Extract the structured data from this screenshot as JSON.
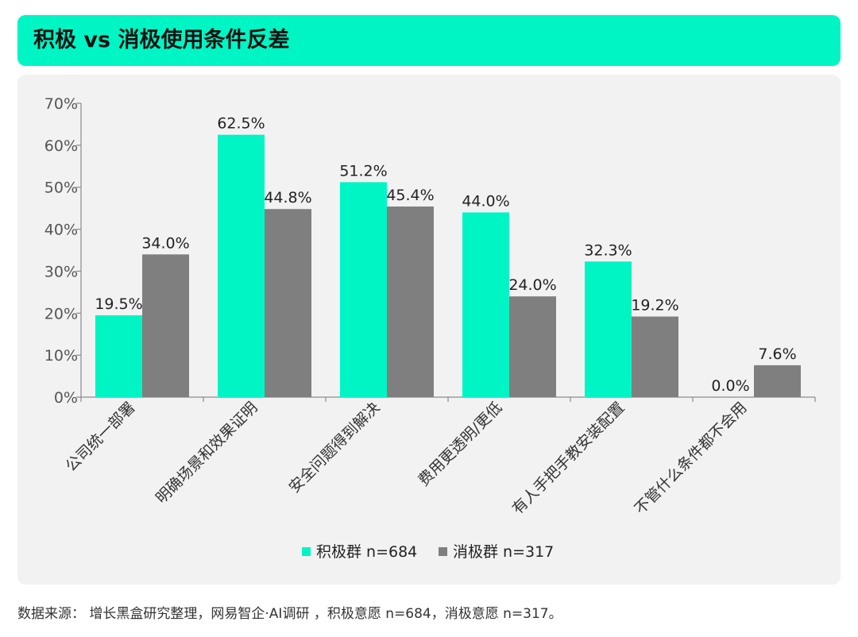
{
  "title": "积极 vs 消极使用条件反差",
  "source": "数据来源： 增长黑盒研究整理，网易智企·AI调研 ，积极意愿 n=684，消极意愿 n=317。",
  "colors": {
    "accent": "#00F5C4",
    "positive": "#00F5C4",
    "negative": "#7F7F7F"
  },
  "chart_data": {
    "type": "bar",
    "categories": [
      "公司统一部署",
      "明确场景和效果证明",
      "安全问题得到解决",
      "费用更透明/更低",
      "有人手把手教安装配置",
      "不管什么条件都不会用"
    ],
    "series": [
      {
        "name": "积极群 n=684",
        "values": [
          19.5,
          62.5,
          51.2,
          44.0,
          32.3,
          0.0
        ],
        "labels": [
          "19.5%",
          "62.5%",
          "51.2%",
          "44.0%",
          "32.3%",
          "0.0%"
        ]
      },
      {
        "name": "消极群 n=317",
        "values": [
          34.0,
          44.8,
          45.4,
          24.0,
          19.2,
          7.6
        ],
        "labels": [
          "34.0%",
          "44.8%",
          "45.4%",
          "24.0%",
          "19.2%",
          "7.6%"
        ]
      }
    ],
    "yticks": [
      "0%",
      "10%",
      "20%",
      "30%",
      "40%",
      "50%",
      "60%",
      "70%"
    ],
    "ylim": [
      0,
      70
    ],
    "grid": false,
    "legend": "bottom-center"
  }
}
